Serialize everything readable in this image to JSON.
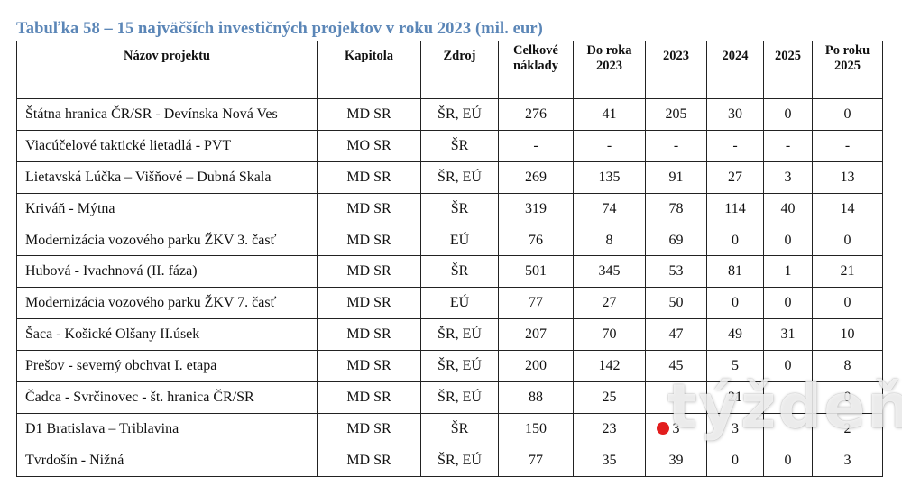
{
  "caption": "Tabuľka 58 – 15 najväčších investičných projektov v roku 2023 (mil. eur)",
  "headers": {
    "nazov": "Názov projektu",
    "kapitola": "Kapitola",
    "zdroj": "Zdroj",
    "celkove_1": "Celkové",
    "celkove_2": "náklady",
    "doroka_1": "Do roka",
    "doroka_2": "2023",
    "y2023": "2023",
    "y2024": "2024",
    "y2025": "2025",
    "poroku_1": "Po roku",
    "poroku_2": "2025"
  },
  "rows": [
    {
      "name": "Štátna hranica ČR/SR - Devínska Nová Ves",
      "kapitola": "MD SR",
      "zdroj": "ŠR, EÚ",
      "celkove": "276",
      "doroka": "41",
      "y2023": "205",
      "y2024": "30",
      "y2025": "0",
      "poroku": "0"
    },
    {
      "name": "Viacúčelové taktické lietadlá - PVT",
      "kapitola": "MO SR",
      "zdroj": "ŠR",
      "celkove": "-",
      "doroka": "-",
      "y2023": "-",
      "y2024": "-",
      "y2025": "-",
      "poroku": "-"
    },
    {
      "name": "Lietavská Lúčka – Višňové – Dubná Skala",
      "kapitola": "MD SR",
      "zdroj": "ŠR, EÚ",
      "celkove": "269",
      "doroka": "135",
      "y2023": "91",
      "y2024": "27",
      "y2025": "3",
      "poroku": "13"
    },
    {
      "name": "Kriváň -  Mýtna",
      "kapitola": "MD SR",
      "zdroj": "ŠR",
      "celkove": "319",
      "doroka": "74",
      "y2023": "78",
      "y2024": "114",
      "y2025": "40",
      "poroku": "14"
    },
    {
      "name": "Modernizácia vozového parku ŽKV 3. časť",
      "kapitola": "MD SR",
      "zdroj": "EÚ",
      "celkove": "76",
      "doroka": "8",
      "y2023": "69",
      "y2024": "0",
      "y2025": "0",
      "poroku": "0"
    },
    {
      "name": "Hubová - Ivachnová (II. fáza)",
      "kapitola": "MD SR",
      "zdroj": "ŠR",
      "celkove": "501",
      "doroka": "345",
      "y2023": "53",
      "y2024": "81",
      "y2025": "1",
      "poroku": "21"
    },
    {
      "name": "Modernizácia vozového parku ŽKV 7. časť",
      "kapitola": "MD SR",
      "zdroj": "EÚ",
      "celkove": "77",
      "doroka": "27",
      "y2023": "50",
      "y2024": "0",
      "y2025": "0",
      "poroku": "0"
    },
    {
      "name": "Šaca - Košické Olšany II.úsek",
      "kapitola": "MD SR",
      "zdroj": "ŠR, EÚ",
      "celkove": "207",
      "doroka": "70",
      "y2023": "47",
      "y2024": "49",
      "y2025": "31",
      "poroku": "10"
    },
    {
      "name": "Prešov - severný obchvat I. etapa",
      "kapitola": "MD SR",
      "zdroj": "ŠR, EÚ",
      "celkove": "200",
      "doroka": "142",
      "y2023": "45",
      "y2024": "5",
      "y2025": "0",
      "poroku": "8"
    },
    {
      "name": "Čadca - Svrčinovec - št. hranica ČR/SR",
      "kapitola": "MD SR",
      "zdroj": "ŠR, EÚ",
      "celkove": "88",
      "doroka": "25",
      "y2023": "",
      "y2024": "21",
      "y2025": "",
      "poroku": "0"
    },
    {
      "name": "D1 Bratislava – Triblavina",
      "kapitola": "MD SR",
      "zdroj": "ŠR",
      "celkove": "150",
      "doroka": "23",
      "y2023": "3",
      "y2024": "3",
      "y2025": "",
      "poroku": "2"
    },
    {
      "name": "Tvrdošín - Nižná",
      "kapitola": "MD SR",
      "zdroj": "ŠR, EÚ",
      "celkove": "77",
      "doroka": "35",
      "y2023": "39",
      "y2024": "0",
      "y2025": "0",
      "poroku": "3"
    }
  ],
  "watermark": {
    "text": "týždeň",
    "dot_color": "#e21d1d"
  }
}
